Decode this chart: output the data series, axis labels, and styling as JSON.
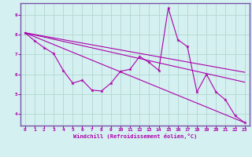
{
  "title": "",
  "xlabel": "Windchill (Refroidissement éolien,°C)",
  "bg_color": "#d5f0f0",
  "grid_color": "#b0d8d0",
  "line_color": "#aa00aa",
  "spine_color": "#7755aa",
  "xlim": [
    -0.5,
    23.5
  ],
  "ylim": [
    3.4,
    9.6
  ],
  "xticks": [
    0,
    1,
    2,
    3,
    4,
    5,
    6,
    7,
    8,
    9,
    10,
    11,
    12,
    13,
    14,
    15,
    16,
    17,
    18,
    19,
    20,
    21,
    22,
    23
  ],
  "yticks": [
    4,
    5,
    6,
    7,
    8,
    9
  ],
  "zigzag": {
    "x": [
      0,
      1,
      2,
      3,
      4,
      5,
      6,
      7,
      8,
      9,
      10,
      11,
      12,
      13,
      14,
      15,
      16,
      17,
      18,
      19,
      20,
      21,
      22,
      23
    ],
    "y": [
      8.1,
      7.7,
      7.35,
      7.05,
      6.2,
      5.55,
      5.7,
      5.2,
      5.15,
      5.55,
      6.15,
      6.25,
      6.9,
      6.6,
      6.2,
      9.35,
      7.75,
      7.4,
      5.1,
      6.0,
      5.1,
      4.7,
      3.9,
      3.55
    ]
  },
  "trend_lines": [
    {
      "x": [
        0,
        23
      ],
      "y": [
        8.1,
        3.55
      ]
    },
    {
      "x": [
        0,
        23
      ],
      "y": [
        8.1,
        6.1
      ]
    },
    {
      "x": [
        0,
        23
      ],
      "y": [
        8.1,
        5.6
      ]
    }
  ]
}
